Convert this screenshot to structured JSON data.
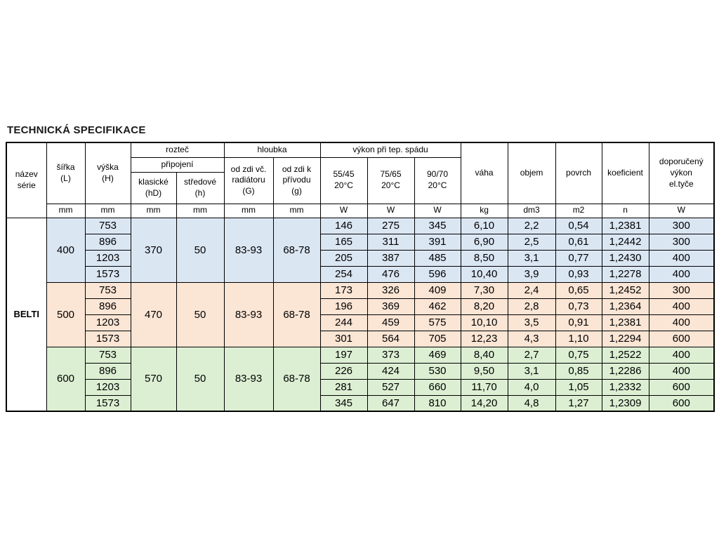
{
  "title": "TECHNICKÁ SPECIFIKACE",
  "table": {
    "series_name": "BELTI",
    "group_colors": [
      "#dbe6f3",
      "#fbe5d5",
      "#dcefd3"
    ],
    "border_color": "#000000",
    "header": {
      "nazev_serie": "název\nsérie",
      "sirka": "šířka\n(L)",
      "vyska": "výška\n(H)",
      "roztec": "rozteč",
      "pripojeni": "připojení",
      "klasicke": "klasické\n(hD)",
      "stredove": "středové\n(h)",
      "hloubka": "hloubka",
      "od_zdi_radiator": "od zdi  vč.\nradiátoru\n(G)",
      "od_zdi_privod": "od zdi  k\npřívodu\n(g)",
      "vykon": "výkon při tep.  spádu",
      "t5545": "55/45\n20°C",
      "t7565": "75/65\n20°C",
      "t9070": "90/70\n20°C",
      "vaha": "váha",
      "objem": "objem",
      "povrch": "povrch",
      "koeficient": "koeficient",
      "doporuceny": "doporučený\nvýkon\nel.tyče"
    },
    "units": {
      "sirka": "mm",
      "vyska": "mm",
      "klasicke": "mm",
      "stredove": "mm",
      "od_zdi_radiator": "mm",
      "od_zdi_privod": "mm",
      "t5545": "W",
      "t7565": "W",
      "t9070": "W",
      "vaha": "kg",
      "objem": "dm3",
      "povrch": "m2",
      "koeficient": "n",
      "doporuceny": "W"
    },
    "groups": [
      {
        "sirka": "400",
        "klasicke": "370",
        "stredove": "50",
        "od_zdi_radiator": "83-93",
        "od_zdi_privod": "68-78",
        "rows": [
          {
            "vyska": "753",
            "v5545": "146",
            "v7565": "275",
            "v9070": "345",
            "vaha": "6,10",
            "objem": "2,2",
            "povrch": "0,54",
            "koeficient": "1,2381",
            "el_tyc": "300"
          },
          {
            "vyska": "896",
            "v5545": "165",
            "v7565": "311",
            "v9070": "391",
            "vaha": "6,90",
            "objem": "2,5",
            "povrch": "0,61",
            "koeficient": "1,2442",
            "el_tyc": "300"
          },
          {
            "vyska": "1203",
            "v5545": "205",
            "v7565": "387",
            "v9070": "485",
            "vaha": "8,50",
            "objem": "3,1",
            "povrch": "0,77",
            "koeficient": "1,2430",
            "el_tyc": "400"
          },
          {
            "vyska": "1573",
            "v5545": "254",
            "v7565": "476",
            "v9070": "596",
            "vaha": "10,40",
            "objem": "3,9",
            "povrch": "0,93",
            "koeficient": "1,2278",
            "el_tyc": "400"
          }
        ]
      },
      {
        "sirka": "500",
        "klasicke": "470",
        "stredove": "50",
        "od_zdi_radiator": "83-93",
        "od_zdi_privod": "68-78",
        "rows": [
          {
            "vyska": "753",
            "v5545": "173",
            "v7565": "326",
            "v9070": "409",
            "vaha": "7,30",
            "objem": "2,4",
            "povrch": "0,65",
            "koeficient": "1,2452",
            "el_tyc": "300"
          },
          {
            "vyska": "896",
            "v5545": "196",
            "v7565": "369",
            "v9070": "462",
            "vaha": "8,20",
            "objem": "2,8",
            "povrch": "0,73",
            "koeficient": "1,2364",
            "el_tyc": "400"
          },
          {
            "vyska": "1203",
            "v5545": "244",
            "v7565": "459",
            "v9070": "575",
            "vaha": "10,10",
            "objem": "3,5",
            "povrch": "0,91",
            "koeficient": "1,2381",
            "el_tyc": "400"
          },
          {
            "vyska": "1573",
            "v5545": "301",
            "v7565": "564",
            "v9070": "705",
            "vaha": "12,23",
            "objem": "4,3",
            "povrch": "1,10",
            "koeficient": "1,2294",
            "el_tyc": "600"
          }
        ]
      },
      {
        "sirka": "600",
        "klasicke": "570",
        "stredove": "50",
        "od_zdi_radiator": "83-93",
        "od_zdi_privod": "68-78",
        "rows": [
          {
            "vyska": "753",
            "v5545": "197",
            "v7565": "373",
            "v9070": "469",
            "vaha": "8,40",
            "objem": "2,7",
            "povrch": "0,75",
            "koeficient": "1,2522",
            "el_tyc": "400"
          },
          {
            "vyska": "896",
            "v5545": "226",
            "v7565": "424",
            "v9070": "530",
            "vaha": "9,50",
            "objem": "3,1",
            "povrch": "0,85",
            "koeficient": "1,2286",
            "el_tyc": "400"
          },
          {
            "vyska": "1203",
            "v5545": "281",
            "v7565": "527",
            "v9070": "660",
            "vaha": "11,70",
            "objem": "4,0",
            "povrch": "1,05",
            "koeficient": "1,2332",
            "el_tyc": "600"
          },
          {
            "vyska": "1573",
            "v5545": "345",
            "v7565": "647",
            "v9070": "810",
            "vaha": "14,20",
            "objem": "4,8",
            "povrch": "1,27",
            "koeficient": "1,2309",
            "el_tyc": "600"
          }
        ]
      }
    ]
  }
}
